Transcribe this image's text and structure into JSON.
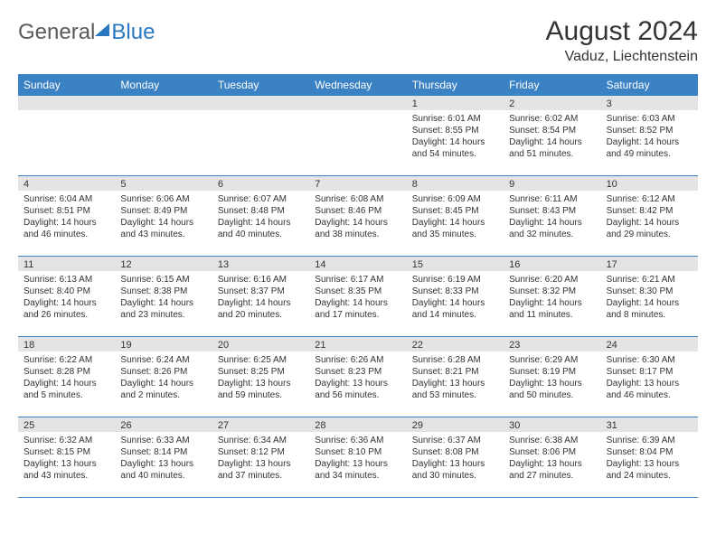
{
  "logo": {
    "general": "General",
    "blue": "Blue"
  },
  "title": "August 2024",
  "location": "Vaduz, Liechtenstein",
  "weekdays": [
    "Sunday",
    "Monday",
    "Tuesday",
    "Wednesday",
    "Thursday",
    "Friday",
    "Saturday"
  ],
  "colors": {
    "headerBar": "#3b82c4",
    "dayBar": "#e4e4e4",
    "rowBorder": "#3b82c4",
    "logoBlue": "#2a78c0",
    "logoGray": "#5a5a5a"
  },
  "weeks": [
    [
      null,
      null,
      null,
      null,
      {
        "n": "1",
        "sunrise": "Sunrise: 6:01 AM",
        "sunset": "Sunset: 8:55 PM",
        "daylight": "Daylight: 14 hours and 54 minutes."
      },
      {
        "n": "2",
        "sunrise": "Sunrise: 6:02 AM",
        "sunset": "Sunset: 8:54 PM",
        "daylight": "Daylight: 14 hours and 51 minutes."
      },
      {
        "n": "3",
        "sunrise": "Sunrise: 6:03 AM",
        "sunset": "Sunset: 8:52 PM",
        "daylight": "Daylight: 14 hours and 49 minutes."
      }
    ],
    [
      {
        "n": "4",
        "sunrise": "Sunrise: 6:04 AM",
        "sunset": "Sunset: 8:51 PM",
        "daylight": "Daylight: 14 hours and 46 minutes."
      },
      {
        "n": "5",
        "sunrise": "Sunrise: 6:06 AM",
        "sunset": "Sunset: 8:49 PM",
        "daylight": "Daylight: 14 hours and 43 minutes."
      },
      {
        "n": "6",
        "sunrise": "Sunrise: 6:07 AM",
        "sunset": "Sunset: 8:48 PM",
        "daylight": "Daylight: 14 hours and 40 minutes."
      },
      {
        "n": "7",
        "sunrise": "Sunrise: 6:08 AM",
        "sunset": "Sunset: 8:46 PM",
        "daylight": "Daylight: 14 hours and 38 minutes."
      },
      {
        "n": "8",
        "sunrise": "Sunrise: 6:09 AM",
        "sunset": "Sunset: 8:45 PM",
        "daylight": "Daylight: 14 hours and 35 minutes."
      },
      {
        "n": "9",
        "sunrise": "Sunrise: 6:11 AM",
        "sunset": "Sunset: 8:43 PM",
        "daylight": "Daylight: 14 hours and 32 minutes."
      },
      {
        "n": "10",
        "sunrise": "Sunrise: 6:12 AM",
        "sunset": "Sunset: 8:42 PM",
        "daylight": "Daylight: 14 hours and 29 minutes."
      }
    ],
    [
      {
        "n": "11",
        "sunrise": "Sunrise: 6:13 AM",
        "sunset": "Sunset: 8:40 PM",
        "daylight": "Daylight: 14 hours and 26 minutes."
      },
      {
        "n": "12",
        "sunrise": "Sunrise: 6:15 AM",
        "sunset": "Sunset: 8:38 PM",
        "daylight": "Daylight: 14 hours and 23 minutes."
      },
      {
        "n": "13",
        "sunrise": "Sunrise: 6:16 AM",
        "sunset": "Sunset: 8:37 PM",
        "daylight": "Daylight: 14 hours and 20 minutes."
      },
      {
        "n": "14",
        "sunrise": "Sunrise: 6:17 AM",
        "sunset": "Sunset: 8:35 PM",
        "daylight": "Daylight: 14 hours and 17 minutes."
      },
      {
        "n": "15",
        "sunrise": "Sunrise: 6:19 AM",
        "sunset": "Sunset: 8:33 PM",
        "daylight": "Daylight: 14 hours and 14 minutes."
      },
      {
        "n": "16",
        "sunrise": "Sunrise: 6:20 AM",
        "sunset": "Sunset: 8:32 PM",
        "daylight": "Daylight: 14 hours and 11 minutes."
      },
      {
        "n": "17",
        "sunrise": "Sunrise: 6:21 AM",
        "sunset": "Sunset: 8:30 PM",
        "daylight": "Daylight: 14 hours and 8 minutes."
      }
    ],
    [
      {
        "n": "18",
        "sunrise": "Sunrise: 6:22 AM",
        "sunset": "Sunset: 8:28 PM",
        "daylight": "Daylight: 14 hours and 5 minutes."
      },
      {
        "n": "19",
        "sunrise": "Sunrise: 6:24 AM",
        "sunset": "Sunset: 8:26 PM",
        "daylight": "Daylight: 14 hours and 2 minutes."
      },
      {
        "n": "20",
        "sunrise": "Sunrise: 6:25 AM",
        "sunset": "Sunset: 8:25 PM",
        "daylight": "Daylight: 13 hours and 59 minutes."
      },
      {
        "n": "21",
        "sunrise": "Sunrise: 6:26 AM",
        "sunset": "Sunset: 8:23 PM",
        "daylight": "Daylight: 13 hours and 56 minutes."
      },
      {
        "n": "22",
        "sunrise": "Sunrise: 6:28 AM",
        "sunset": "Sunset: 8:21 PM",
        "daylight": "Daylight: 13 hours and 53 minutes."
      },
      {
        "n": "23",
        "sunrise": "Sunrise: 6:29 AM",
        "sunset": "Sunset: 8:19 PM",
        "daylight": "Daylight: 13 hours and 50 minutes."
      },
      {
        "n": "24",
        "sunrise": "Sunrise: 6:30 AM",
        "sunset": "Sunset: 8:17 PM",
        "daylight": "Daylight: 13 hours and 46 minutes."
      }
    ],
    [
      {
        "n": "25",
        "sunrise": "Sunrise: 6:32 AM",
        "sunset": "Sunset: 8:15 PM",
        "daylight": "Daylight: 13 hours and 43 minutes."
      },
      {
        "n": "26",
        "sunrise": "Sunrise: 6:33 AM",
        "sunset": "Sunset: 8:14 PM",
        "daylight": "Daylight: 13 hours and 40 minutes."
      },
      {
        "n": "27",
        "sunrise": "Sunrise: 6:34 AM",
        "sunset": "Sunset: 8:12 PM",
        "daylight": "Daylight: 13 hours and 37 minutes."
      },
      {
        "n": "28",
        "sunrise": "Sunrise: 6:36 AM",
        "sunset": "Sunset: 8:10 PM",
        "daylight": "Daylight: 13 hours and 34 minutes."
      },
      {
        "n": "29",
        "sunrise": "Sunrise: 6:37 AM",
        "sunset": "Sunset: 8:08 PM",
        "daylight": "Daylight: 13 hours and 30 minutes."
      },
      {
        "n": "30",
        "sunrise": "Sunrise: 6:38 AM",
        "sunset": "Sunset: 8:06 PM",
        "daylight": "Daylight: 13 hours and 27 minutes."
      },
      {
        "n": "31",
        "sunrise": "Sunrise: 6:39 AM",
        "sunset": "Sunset: 8:04 PM",
        "daylight": "Daylight: 13 hours and 24 minutes."
      }
    ]
  ]
}
